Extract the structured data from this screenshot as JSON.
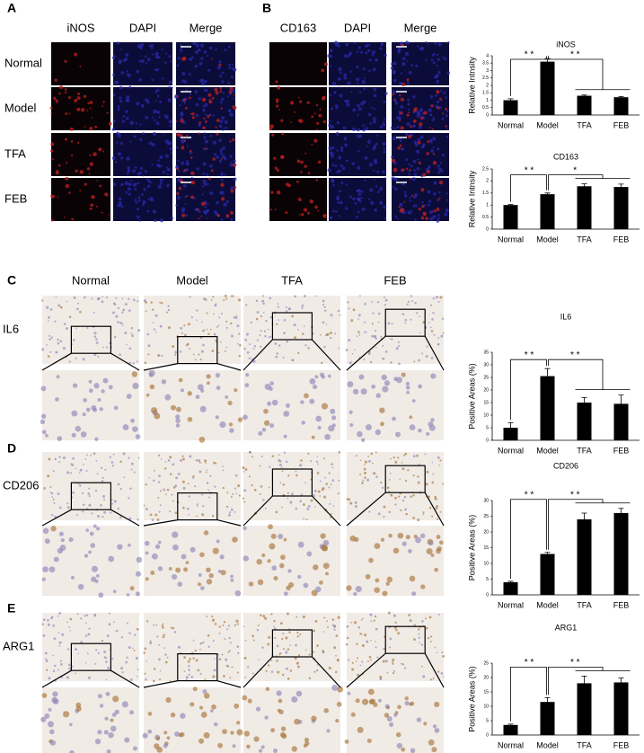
{
  "panel_A": {
    "label": "A",
    "columns": [
      "iNOS",
      "DAPI",
      "Merge"
    ],
    "rows": [
      "Normal",
      "Model",
      "TFA",
      "FEB"
    ]
  },
  "panel_B": {
    "label": "B",
    "columns": [
      "CD163",
      "DAPI",
      "Merge"
    ]
  },
  "ihc": {
    "columns": [
      "Normal",
      "Model",
      "TFA",
      "FEB"
    ],
    "panels": [
      {
        "label": "C",
        "row": "IL6"
      },
      {
        "label": "D",
        "row": "CD206"
      },
      {
        "label": "E",
        "row": "ARG1"
      }
    ]
  },
  "chart_data": [
    {
      "type": "bar",
      "title": "iNOS",
      "y_label": "Relative Intnsity",
      "categories": [
        "Normal",
        "Model",
        "TFA",
        "FEB"
      ],
      "values": [
        1.0,
        3.6,
        1.3,
        1.2
      ],
      "errors": [
        0.1,
        0.2,
        0.05,
        0.05
      ],
      "color": "#000000",
      "ylim": [
        0,
        4
      ],
      "yticks": [
        0,
        0.5,
        1,
        1.5,
        2,
        2.5,
        3,
        3.5,
        4
      ],
      "annotations": [
        "* *",
        "* *"
      ]
    },
    {
      "type": "bar",
      "title": "CD163",
      "y_label": "Relative Intnsity",
      "categories": [
        "Normal",
        "Model",
        "TFA",
        "FEB"
      ],
      "values": [
        1.0,
        1.45,
        1.78,
        1.75
      ],
      "errors": [
        0.02,
        0.05,
        0.1,
        0.12
      ],
      "color": "#000000",
      "ylim": [
        0,
        2.5
      ],
      "yticks": [
        0,
        0.5,
        1,
        1.5,
        2,
        2.5
      ],
      "annotations": [
        "* *",
        "*"
      ]
    },
    {
      "type": "bar",
      "title": "IL6",
      "y_label": "Positive Areas (%)",
      "categories": [
        "Normal",
        "Model",
        "TFA",
        "FEB"
      ],
      "values": [
        5,
        25.5,
        15,
        14.5
      ],
      "errors": [
        2,
        3,
        2,
        3.5
      ],
      "color": "#000000",
      "ylim": [
        0,
        35
      ],
      "yticks": [
        0,
        5,
        10,
        15,
        20,
        25,
        30,
        35
      ],
      "annotations": [
        "* *",
        "* *"
      ]
    },
    {
      "type": "bar",
      "title": "CD206",
      "y_label": "Positive Areas (%)",
      "categories": [
        "Normal",
        "Model",
        "TFA",
        "FEB"
      ],
      "values": [
        4,
        13,
        24,
        26
      ],
      "errors": [
        0.3,
        0.5,
        2,
        1.5
      ],
      "color": "#000000",
      "ylim": [
        0,
        30
      ],
      "yticks": [
        0,
        5,
        10,
        15,
        20,
        25,
        30
      ],
      "annotations": [
        "* *",
        "* *"
      ]
    },
    {
      "type": "bar",
      "title": "ARG1",
      "y_label": "Positive Areas (%)",
      "categories": [
        "Normal",
        "Model",
        "TFA",
        "FEB"
      ],
      "values": [
        3.5,
        11.5,
        18,
        18.3
      ],
      "errors": [
        0.3,
        1.5,
        2.5,
        1.5
      ],
      "color": "#000000",
      "ylim": [
        0,
        25
      ],
      "yticks": [
        0,
        5,
        10,
        15,
        20,
        25
      ],
      "annotations": [
        "* *",
        "* *"
      ]
    }
  ]
}
